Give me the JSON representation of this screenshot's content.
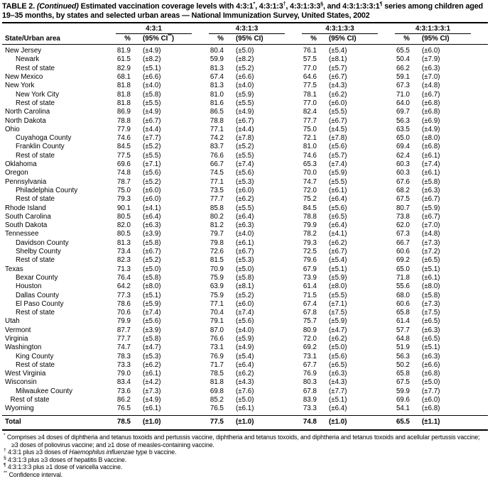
{
  "title": {
    "label": "TABLE 2. ",
    "continued": "(Continued)",
    "seg1": " Estimated vaccination coverage levels with 4:3:1",
    "sup1": "*",
    "seg2": ", 4:3:1:3",
    "sup2": "†",
    "seg3": ", 4:3:1:3:3",
    "sup3": "§",
    "seg4": ", and 4:3:1:3:3:1",
    "sup4": "¶",
    "seg5": " series among children aged 19–35 months, by states and selected urban areas — National Immunization Survey, United States, 2002"
  },
  "table": {
    "area_header": "State/Urban area",
    "groups": [
      {
        "label": "4:3:1",
        "pct": "%",
        "ci_pre": "(95% CI",
        "ci_sup": "**",
        "ci_post": ")"
      },
      {
        "label": "4:3:1:3",
        "pct": "%",
        "ci_pre": "(95% CI",
        "ci_sup": "",
        "ci_post": ")"
      },
      {
        "label": "4:3:1:3:3",
        "pct": "%",
        "ci_pre": "(95% CI",
        "ci_sup": "",
        "ci_post": ")"
      },
      {
        "label": "4:3:1:3:3:1",
        "pct": "%",
        "ci_pre": "(95% CI",
        "ci_sup": "",
        "ci_post": ")"
      }
    ],
    "rows": [
      {
        "area": "New Jersey",
        "indent": 0,
        "values": [
          "81.9",
          "(±4.9)",
          "80.4",
          "(±5.0)",
          "76.1",
          "(±5.4)",
          "65.5",
          "(±6.0)"
        ]
      },
      {
        "area": "Newark",
        "indent": 1,
        "values": [
          "61.5",
          "(±8.2)",
          "59.9",
          "(±8.2)",
          "57.5",
          "(±8.1)",
          "50.4",
          "(±7.9)"
        ]
      },
      {
        "area": "Rest of state",
        "indent": 1,
        "values": [
          "82.9",
          "(±5.1)",
          "81.3",
          "(±5.2)",
          "77.0",
          "(±5.7)",
          "66.2",
          "(±6.3)"
        ]
      },
      {
        "area": "New Mexico",
        "indent": 0,
        "values": [
          "68.1",
          "(±6.6)",
          "67.4",
          "(±6.6)",
          "64.6",
          "(±6.7)",
          "59.1",
          "(±7.0)"
        ]
      },
      {
        "area": "New York",
        "indent": 0,
        "values": [
          "81.8",
          "(±4.0)",
          "81.3",
          "(±4.0)",
          "77.5",
          "(±4.3)",
          "67.3",
          "(±4.8)"
        ]
      },
      {
        "area": "New York City",
        "indent": 1,
        "values": [
          "81.8",
          "(±5.8)",
          "81.0",
          "(±5.9)",
          "78.1",
          "(±6.2)",
          "71.0",
          "(±6.7)"
        ]
      },
      {
        "area": "Rest of state",
        "indent": 1,
        "values": [
          "81.8",
          "(±5.5)",
          "81.6",
          "(±5.5)",
          "77.0",
          "(±6.0)",
          "64.0",
          "(±6.8)"
        ]
      },
      {
        "area": "North Carolina",
        "indent": 0,
        "values": [
          "86.9",
          "(±4.9)",
          "86.5",
          "(±4.9)",
          "82.4",
          "(±5.5)",
          "69.7",
          "(±6.8)"
        ]
      },
      {
        "area": "North Dakota",
        "indent": 0,
        "values": [
          "78.8",
          "(±6.7)",
          "78.8",
          "(±6.7)",
          "77.7",
          "(±6.7)",
          "56.3",
          "(±6.9)"
        ]
      },
      {
        "area": "Ohio",
        "indent": 0,
        "values": [
          "77.9",
          "(±4.4)",
          "77.1",
          "(±4.4)",
          "75.0",
          "(±4.5)",
          "63.5",
          "(±4.9)"
        ]
      },
      {
        "area": "Cuyahoga County",
        "indent": 1,
        "values": [
          "74.6",
          "(±7.7)",
          "74.2",
          "(±7.8)",
          "72.1",
          "(±7.8)",
          "65.0",
          "(±8.0)"
        ]
      },
      {
        "area": "Franklin County",
        "indent": 1,
        "values": [
          "84.5",
          "(±5.2)",
          "83.7",
          "(±5.2)",
          "81.0",
          "(±5.6)",
          "69.4",
          "(±6.8)"
        ]
      },
      {
        "area": "Rest of state",
        "indent": 1,
        "values": [
          "77.5",
          "(±5.5)",
          "76.6",
          "(±5.5)",
          "74.6",
          "(±5.7)",
          "62.4",
          "(±6.1)"
        ]
      },
      {
        "area": "Oklahoma",
        "indent": 0,
        "values": [
          "69.6",
          "(±7.1)",
          "66.7",
          "(±7.4)",
          "65.3",
          "(±7.4)",
          "60.3",
          "(±7.4)"
        ]
      },
      {
        "area": "Oregon",
        "indent": 0,
        "values": [
          "74.8",
          "(±5.6)",
          "74.5",
          "(±5.6)",
          "70.0",
          "(±5.9)",
          "60.3",
          "(±6.1)"
        ]
      },
      {
        "area": "Pennsylvania",
        "indent": 0,
        "values": [
          "78.7",
          "(±5.2)",
          "77.1",
          "(±5.3)",
          "74.7",
          "(±5.5)",
          "67.6",
          "(±5.8)"
        ]
      },
      {
        "area": "Philadelphia County",
        "indent": 1,
        "values": [
          "75.0",
          "(±6.0)",
          "73.5",
          "(±6.0)",
          "72.0",
          "(±6.1)",
          "68.2",
          "(±6.3)"
        ]
      },
      {
        "area": "Rest of state",
        "indent": 1,
        "values": [
          "79.3",
          "(±6.0)",
          "77.7",
          "(±6.2)",
          "75.2",
          "(±6.4)",
          "67.5",
          "(±6.7)"
        ]
      },
      {
        "area": "Rhode Island",
        "indent": 0,
        "values": [
          "90.1",
          "(±4.1)",
          "85.8",
          "(±5.5)",
          "84.5",
          "(±5.6)",
          "80.7",
          "(±5.9)"
        ]
      },
      {
        "area": "South Carolina",
        "indent": 0,
        "values": [
          "80.5",
          "(±6.4)",
          "80.2",
          "(±6.4)",
          "78.8",
          "(±6.5)",
          "73.8",
          "(±6.7)"
        ]
      },
      {
        "area": "South Dakota",
        "indent": 0,
        "values": [
          "82.0",
          "(±6.3)",
          "81.2",
          "(±6.3)",
          "79.9",
          "(±6.4)",
          "62.0",
          "(±7.0)"
        ]
      },
      {
        "area": "Tennessee",
        "indent": 0,
        "values": [
          "80.5",
          "(±3.9)",
          "79.7",
          "(±4.0)",
          "78.2",
          "(±4.1)",
          "67.3",
          "(±4.8)"
        ]
      },
      {
        "area": "Davidson County",
        "indent": 1,
        "values": [
          "81.3",
          "(±5.8)",
          "79.8",
          "(±6.1)",
          "79.3",
          "(±6.2)",
          "66.7",
          "(±7.3)"
        ]
      },
      {
        "area": "Shelby County",
        "indent": 1,
        "values": [
          "73.4",
          "(±6.7)",
          "72.6",
          "(±6.7)",
          "72.5",
          "(±6.7)",
          "60.6",
          "(±7.2)"
        ]
      },
      {
        "area": "Rest of state",
        "indent": 1,
        "values": [
          "82.3",
          "(±5.2)",
          "81.5",
          "(±5.3)",
          "79.6",
          "(±5.4)",
          "69.2",
          "(±6.5)"
        ]
      },
      {
        "area": "Texas",
        "indent": 0,
        "values": [
          "71.3",
          "(±5.0)",
          "70.9",
          "(±5.0)",
          "67.9",
          "(±5.1)",
          "65.0",
          "(±5.1)"
        ]
      },
      {
        "area": "Bexar County",
        "indent": 1,
        "values": [
          "76.4",
          "(±5.8)",
          "75.9",
          "(±5.8)",
          "73.9",
          "(±5.9)",
          "71.8",
          "(±6.1)"
        ]
      },
      {
        "area": "Houston",
        "indent": 1,
        "values": [
          "64.2",
          "(±8.0)",
          "63.9",
          "(±8.1)",
          "61.4",
          "(±8.0)",
          "55.6",
          "(±8.0)"
        ]
      },
      {
        "area": "Dallas County",
        "indent": 1,
        "values": [
          "77.3",
          "(±5.1)",
          "75.9",
          "(±5.2)",
          "71.5",
          "(±5.5)",
          "68.0",
          "(±5.8)"
        ]
      },
      {
        "area": "El Paso County",
        "indent": 1,
        "values": [
          "78.6",
          "(±5.9)",
          "77.1",
          "(±6.0)",
          "67.4",
          "(±7.1)",
          "60.6",
          "(±7.3)"
        ]
      },
      {
        "area": "Rest of state",
        "indent": 1,
        "values": [
          "70.6",
          "(±7.4)",
          "70.4",
          "(±7.4)",
          "67.8",
          "(±7.5)",
          "65.8",
          "(±7.5)"
        ]
      },
      {
        "area": "Utah",
        "indent": 0,
        "values": [
          "79.9",
          "(±5.6)",
          "79.1",
          "(±5.6)",
          "75.7",
          "(±5.9)",
          "61.4",
          "(±6.5)"
        ]
      },
      {
        "area": "Vermont",
        "indent": 0,
        "values": [
          "87.7",
          "(±3.9)",
          "87.0",
          "(±4.0)",
          "80.9",
          "(±4.7)",
          "57.7",
          "(±6.3)"
        ]
      },
      {
        "area": "Virginia",
        "indent": 0,
        "values": [
          "77.7",
          "(±5.8)",
          "76.6",
          "(±5.9)",
          "72.0",
          "(±6.2)",
          "64.8",
          "(±6.5)"
        ]
      },
      {
        "area": "Washington",
        "indent": 0,
        "values": [
          "74.7",
          "(±4.7)",
          "73.1",
          "(±4.9)",
          "69.2",
          "(±5.0)",
          "51.9",
          "(±5.1)"
        ]
      },
      {
        "area": "King County",
        "indent": 1,
        "values": [
          "78.3",
          "(±5.3)",
          "76.9",
          "(±5.4)",
          "73.1",
          "(±5.6)",
          "56.3",
          "(±6.3)"
        ]
      },
      {
        "area": "Rest of state",
        "indent": 1,
        "values": [
          "73.3",
          "(±6.2)",
          "71.7",
          "(±6.4)",
          "67.7",
          "(±6.5)",
          "50.2",
          "(±6.6)"
        ]
      },
      {
        "area": "West Virginia",
        "indent": 0,
        "values": [
          "79.0",
          "(±6.1)",
          "78.5",
          "(±6.2)",
          "76.9",
          "(±6.3)",
          "65.8",
          "(±6.8)"
        ]
      },
      {
        "area": "Wisconsin",
        "indent": 0,
        "values": [
          "83.4",
          "(±4.2)",
          "81.8",
          "(±4.3)",
          "80.3",
          "(±4.3)",
          "67.5",
          "(±5.0)"
        ]
      },
      {
        "area": "Milwaukee County",
        "indent": 1,
        "values": [
          "73.6",
          "(±7.3)",
          "69.8",
          "(±7.6)",
          "67.8",
          "(±7.7)",
          "59.9",
          "(±7.7)"
        ]
      },
      {
        "area": "Rest of state",
        "indent": 0.5,
        "values": [
          "86.2",
          "(±4.9)",
          "85.2",
          "(±5.0)",
          "83.9",
          "(±5.1)",
          "69.6",
          "(±6.0)"
        ]
      },
      {
        "area": "Wyoming",
        "indent": 0,
        "values": [
          "76.5",
          "(±6.1)",
          "76.5",
          "(±6.1)",
          "73.3",
          "(±6.4)",
          "54.1",
          "(±6.8)"
        ]
      }
    ],
    "total": {
      "area": "Total",
      "values": [
        "78.5",
        "(±1.0)",
        "77.5",
        "(±1.0)",
        "74.8",
        "(±1.0)",
        "65.5",
        "(±1.1)"
      ]
    }
  },
  "footnotes": [
    {
      "marker": "*",
      "pre": "Comprises ≥4 doses of diphtheria and tetanus toxoids and pertussis vaccine, diphtheria and tetanus toxoids, and diphtheria and tetanus toxoids and acellular pertussis vaccine; ≥3 doses of poliovirus vaccine; and ≥1 dose of measles-containing vaccine.",
      "italic": "",
      "post": ""
    },
    {
      "marker": "†",
      "pre": "4:3:1 plus ≥3 doses of ",
      "italic": "Haemophilus influenzae",
      "post": " type b vaccine."
    },
    {
      "marker": "§",
      "pre": "4:3:1:3 plus ≥3 doses of hepatitis B vaccine.",
      "italic": "",
      "post": ""
    },
    {
      "marker": "¶",
      "pre": "4:3:1:3:3 plus ≥1 dose of varicella vaccine.",
      "italic": "",
      "post": ""
    },
    {
      "marker": "**",
      "pre": "Confidence interval.",
      "italic": "",
      "post": ""
    }
  ]
}
